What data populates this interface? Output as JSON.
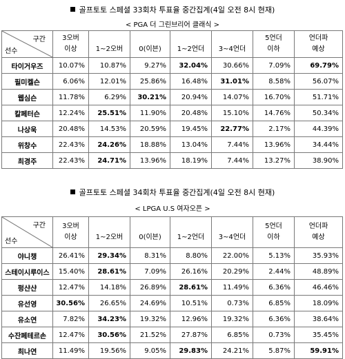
{
  "sections": [
    {
      "title": "골프토토 스페셜 33회차 투표율 중간집계(4일 오전 8시 현재)",
      "subtitle": "< PGA 더 그린브리어 클래식 >",
      "corner_top": "구간",
      "corner_bottom": "선수",
      "columns": [
        {
          "line1": "3오버",
          "line2": "이상"
        },
        {
          "line1": "",
          "line2": "1~2오버"
        },
        {
          "line1": "",
          "line2": "0(이븐)"
        },
        {
          "line1": "",
          "line2": "1~2언더"
        },
        {
          "line1": "",
          "line2": "3~4언더"
        },
        {
          "line1": "5언더",
          "line2": "이하"
        },
        {
          "line1": "언더파",
          "line2": "예상"
        }
      ],
      "rows": [
        {
          "name": "타이거우즈",
          "values": [
            "10.07%",
            "10.87%",
            "9.27%",
            "32.04%",
            "30.66%",
            "7.09%",
            "69.79%"
          ],
          "bold": [
            3,
            6
          ]
        },
        {
          "name": "필미켈슨",
          "values": [
            "6.06%",
            "12.01%",
            "25.86%",
            "16.48%",
            "31.01%",
            "8.58%",
            "56.07%"
          ],
          "bold": [
            4
          ]
        },
        {
          "name": "웹심슨",
          "values": [
            "11.78%",
            "6.29%",
            "30.21%",
            "20.94%",
            "14.07%",
            "16.70%",
            "51.71%"
          ],
          "bold": [
            2
          ]
        },
        {
          "name": "칼페터슨",
          "values": [
            "12.24%",
            "25.51%",
            "11.90%",
            "20.48%",
            "15.10%",
            "14.76%",
            "50.34%"
          ],
          "bold": [
            1
          ]
        },
        {
          "name": "나상욱",
          "values": [
            "20.48%",
            "14.53%",
            "20.59%",
            "19.45%",
            "22.77%",
            "2.17%",
            "44.39%"
          ],
          "bold": [
            4
          ]
        },
        {
          "name": "위창수",
          "values": [
            "22.43%",
            "24.26%",
            "18.88%",
            "13.04%",
            "7.44%",
            "13.96%",
            "34.44%"
          ],
          "bold": [
            1
          ]
        },
        {
          "name": "최경주",
          "values": [
            "22.43%",
            "24.71%",
            "13.96%",
            "18.19%",
            "7.44%",
            "13.27%",
            "38.90%"
          ],
          "bold": [
            1
          ]
        }
      ]
    },
    {
      "title": "골프토토 스페셜 34회차 투표율 중간집계(4일 오전 8시 현재)",
      "subtitle": "< LPGA U.S 여자오픈 >",
      "corner_top": "구간",
      "corner_bottom": "선수",
      "columns": [
        {
          "line1": "3오버",
          "line2": "이상"
        },
        {
          "line1": "",
          "line2": "1~2오버"
        },
        {
          "line1": "",
          "line2": "0(이븐)"
        },
        {
          "line1": "",
          "line2": "1~2언더"
        },
        {
          "line1": "",
          "line2": "3~4언더"
        },
        {
          "line1": "5언더",
          "line2": "이하"
        },
        {
          "line1": "언더파",
          "line2": "예상"
        }
      ],
      "rows": [
        {
          "name": "야니챙",
          "values": [
            "26.41%",
            "29.34%",
            "8.31%",
            "8.80%",
            "22.00%",
            "5.13%",
            "35.93%"
          ],
          "bold": [
            1
          ]
        },
        {
          "name": "스테이시루이스",
          "values": [
            "15.40%",
            "28.61%",
            "7.09%",
            "26.16%",
            "20.29%",
            "2.44%",
            "48.89%"
          ],
          "bold": [
            1
          ]
        },
        {
          "name": "펑샨샨",
          "values": [
            "12.47%",
            "14.18%",
            "26.89%",
            "28.61%",
            "11.49%",
            "6.36%",
            "46.46%"
          ],
          "bold": [
            3
          ]
        },
        {
          "name": "유선영",
          "values": [
            "30.56%",
            "26.65%",
            "24.69%",
            "10.51%",
            "0.73%",
            "6.85%",
            "18.09%"
          ],
          "bold": [
            0
          ]
        },
        {
          "name": "유소연",
          "values": [
            "7.82%",
            "34.23%",
            "19.32%",
            "12.96%",
            "19.32%",
            "6.36%",
            "38.64%"
          ],
          "bold": [
            1
          ]
        },
        {
          "name": "수잔페테르손",
          "values": [
            "12.47%",
            "30.56%",
            "21.52%",
            "27.87%",
            "6.85%",
            "0.73%",
            "35.45%"
          ],
          "bold": [
            1
          ]
        },
        {
          "name": "최나연",
          "values": [
            "11.49%",
            "19.56%",
            "9.05%",
            "29.83%",
            "24.21%",
            "5.87%",
            "59.91%"
          ],
          "bold": [
            3,
            6
          ]
        }
      ]
    }
  ]
}
